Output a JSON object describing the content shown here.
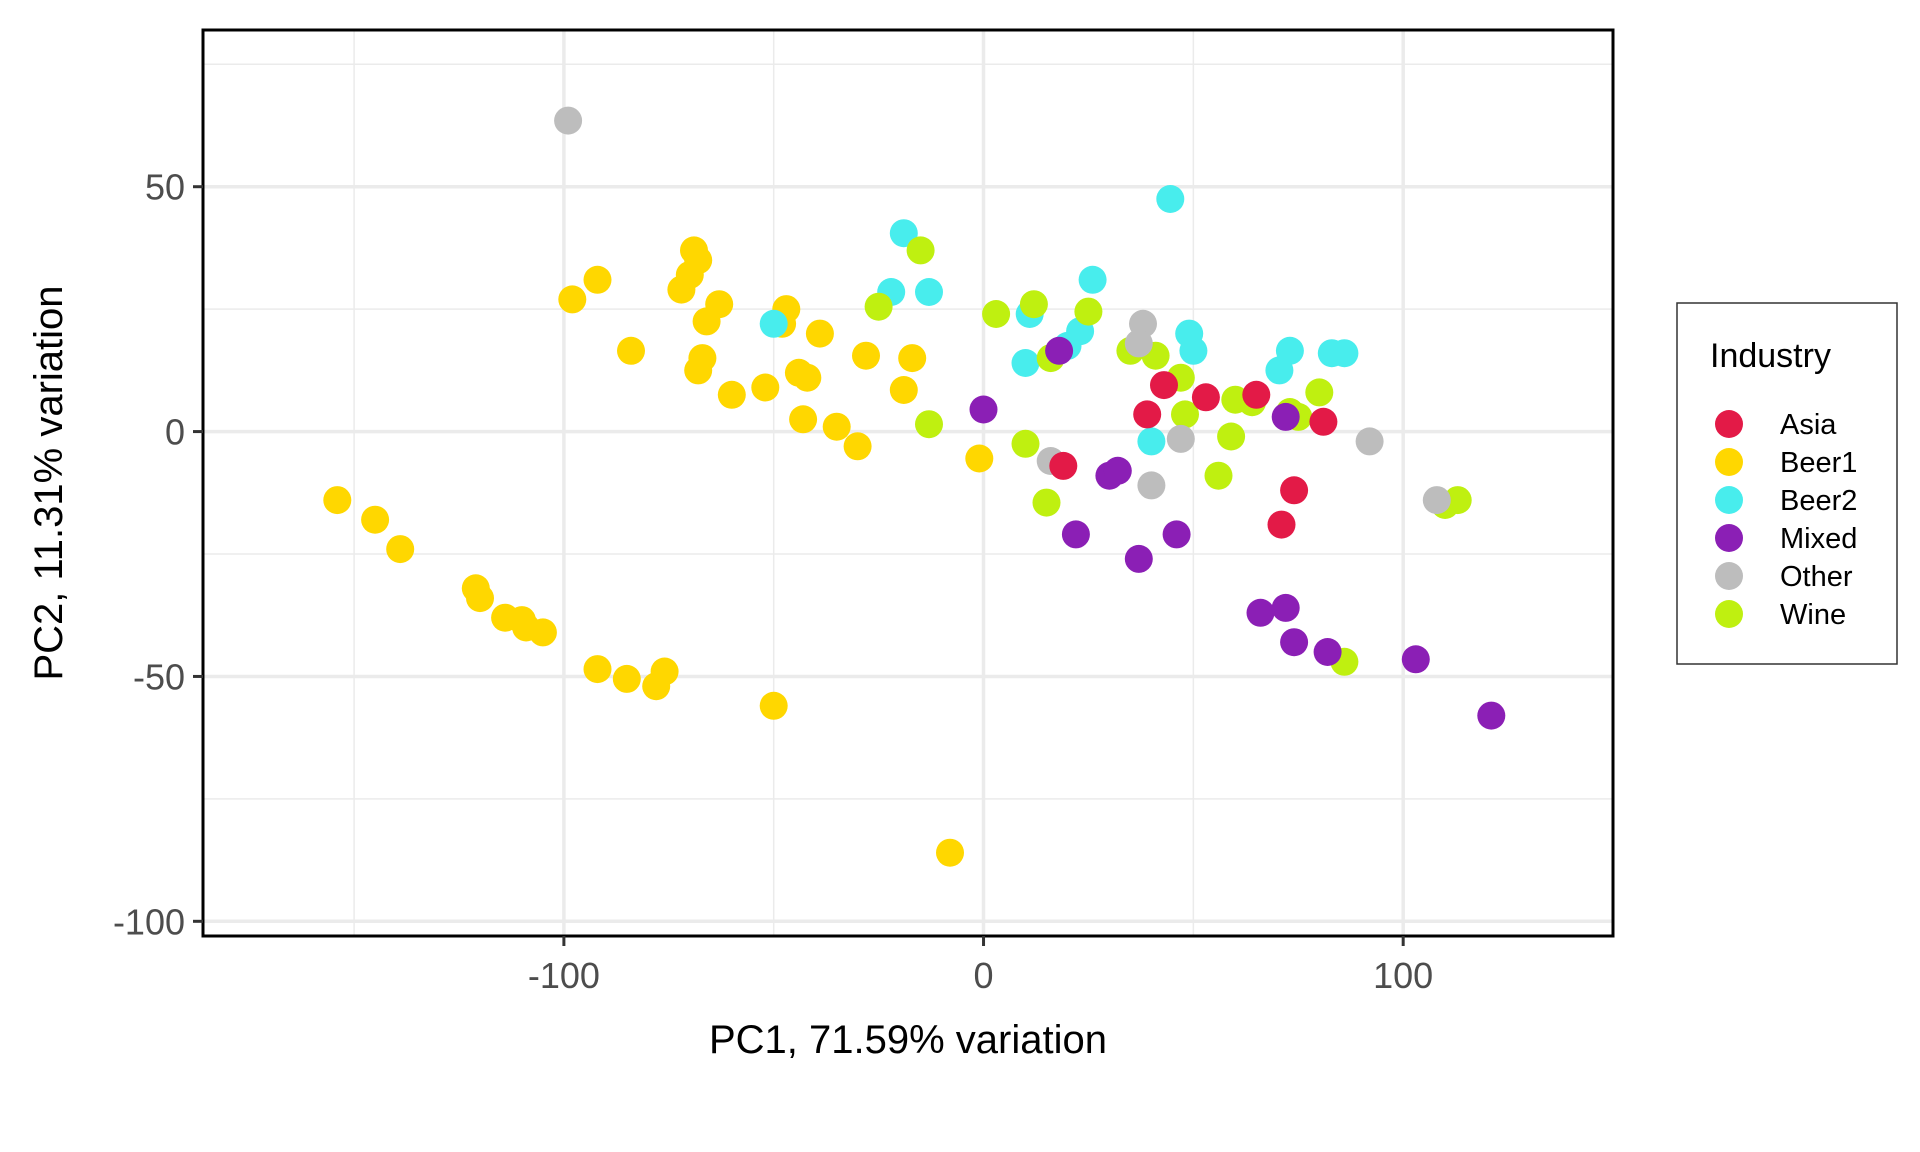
{
  "chart_data": {
    "type": "scatter",
    "title": "",
    "xlabel": "PC1, 71.59% variation",
    "ylabel": "PC2, 11.31% variation",
    "xlim": [
      -186,
      150
    ],
    "ylim": [
      -103,
      82
    ],
    "x_ticks": [
      -100,
      0,
      100
    ],
    "y_ticks": [
      -100,
      -50,
      0,
      50
    ],
    "x_tick_labels": [
      "-100",
      "0",
      "100"
    ],
    "y_tick_labels": [
      "-100",
      "-50",
      "0",
      "50"
    ],
    "grid": true,
    "legend_position": "right",
    "legend": {
      "title": "Industry",
      "entries": [
        "Asia",
        "Beer1",
        "Beer2",
        "Mixed",
        "Other",
        "Wine"
      ]
    },
    "colors": {
      "Asia": "#E31A47",
      "Beer1": "#FFD700",
      "Beer2": "#48EDED",
      "Mixed": "#8B1FB5",
      "Other": "#BDBDBD",
      "Wine": "#BFF010"
    },
    "draw_order": [
      "Beer1",
      "Beer2",
      "Wine",
      "Other",
      "Asia",
      "Mixed"
    ],
    "series": [
      {
        "name": "Beer1",
        "points": [
          [
            -98,
            27
          ],
          [
            -92,
            31
          ],
          [
            -84,
            16.5
          ],
          [
            -72,
            29
          ],
          [
            -70,
            32
          ],
          [
            -69,
            37
          ],
          [
            -68,
            35
          ],
          [
            -66,
            22.5
          ],
          [
            -63,
            26
          ],
          [
            -67,
            15
          ],
          [
            -68,
            12.5
          ],
          [
            -60,
            7.5
          ],
          [
            -52,
            9
          ],
          [
            -48,
            22
          ],
          [
            -47,
            25
          ],
          [
            -44,
            12
          ],
          [
            -42,
            11
          ],
          [
            -43,
            2.5
          ],
          [
            -39,
            20
          ],
          [
            -35,
            1
          ],
          [
            -30,
            -3
          ],
          [
            -28,
            15.5
          ],
          [
            -19,
            8.5
          ],
          [
            -17,
            15
          ],
          [
            -1,
            -5.5
          ],
          [
            -154,
            -14
          ],
          [
            -145,
            -18
          ],
          [
            -139,
            -24
          ],
          [
            -121,
            -32
          ],
          [
            -120,
            -34
          ],
          [
            -114,
            -38
          ],
          [
            -110,
            -38.5
          ],
          [
            -109,
            -40
          ],
          [
            -105,
            -41
          ],
          [
            -92,
            -48.5
          ],
          [
            -85,
            -50.5
          ],
          [
            -78,
            -52
          ],
          [
            -76,
            -49
          ],
          [
            -50,
            -56
          ],
          [
            -8,
            -86
          ]
        ]
      },
      {
        "name": "Beer2",
        "points": [
          [
            -50,
            22
          ],
          [
            -19,
            40.5
          ],
          [
            -22,
            28.5
          ],
          [
            -13,
            28.5
          ],
          [
            11,
            24
          ],
          [
            10,
            14
          ],
          [
            20,
            17.5
          ],
          [
            23,
            20.5
          ],
          [
            26,
            31
          ],
          [
            44.5,
            47.5
          ],
          [
            49,
            20
          ],
          [
            50,
            16.5
          ],
          [
            40,
            -2
          ],
          [
            70.5,
            12.5
          ],
          [
            73,
            16.5
          ],
          [
            83,
            16
          ],
          [
            86,
            16
          ]
        ]
      },
      {
        "name": "Wine",
        "points": [
          [
            -15,
            37
          ],
          [
            -25,
            25.5
          ],
          [
            -13,
            1.5
          ],
          [
            3,
            24
          ],
          [
            12,
            26
          ],
          [
            16,
            15
          ],
          [
            25,
            24.5
          ],
          [
            35,
            16.5
          ],
          [
            41,
            15.5
          ],
          [
            47,
            11
          ],
          [
            48,
            3.5
          ],
          [
            60,
            6.5
          ],
          [
            64,
            6
          ],
          [
            59,
            -1
          ],
          [
            56,
            -9
          ],
          [
            10,
            -2.5
          ],
          [
            15,
            -14.5
          ],
          [
            73,
            4
          ],
          [
            75,
            3
          ],
          [
            80,
            8
          ],
          [
            86,
            -47
          ],
          [
            110,
            -15
          ],
          [
            113,
            -14
          ]
        ]
      },
      {
        "name": "Other",
        "points": [
          [
            -99,
            63.5
          ],
          [
            38,
            22
          ],
          [
            37,
            18
          ],
          [
            16,
            -6
          ],
          [
            40,
            -11
          ],
          [
            47,
            -1.5
          ],
          [
            92,
            -2
          ],
          [
            108,
            -14
          ]
        ]
      },
      {
        "name": "Asia",
        "points": [
          [
            43,
            9.5
          ],
          [
            39,
            3.5
          ],
          [
            53,
            7
          ],
          [
            65,
            7.5
          ],
          [
            81,
            2
          ],
          [
            19,
            -7
          ],
          [
            74,
            -12
          ],
          [
            71,
            -19
          ]
        ]
      },
      {
        "name": "Mixed",
        "points": [
          [
            0,
            4.5
          ],
          [
            18,
            16.5
          ],
          [
            30,
            -9
          ],
          [
            32,
            -8
          ],
          [
            22,
            -21
          ],
          [
            46,
            -21
          ],
          [
            37,
            -26
          ],
          [
            72,
            3
          ],
          [
            66,
            -37
          ],
          [
            72,
            -36
          ],
          [
            74,
            -43
          ],
          [
            82,
            -45
          ],
          [
            103,
            -46.5
          ],
          [
            121,
            -58
          ]
        ]
      }
    ]
  }
}
